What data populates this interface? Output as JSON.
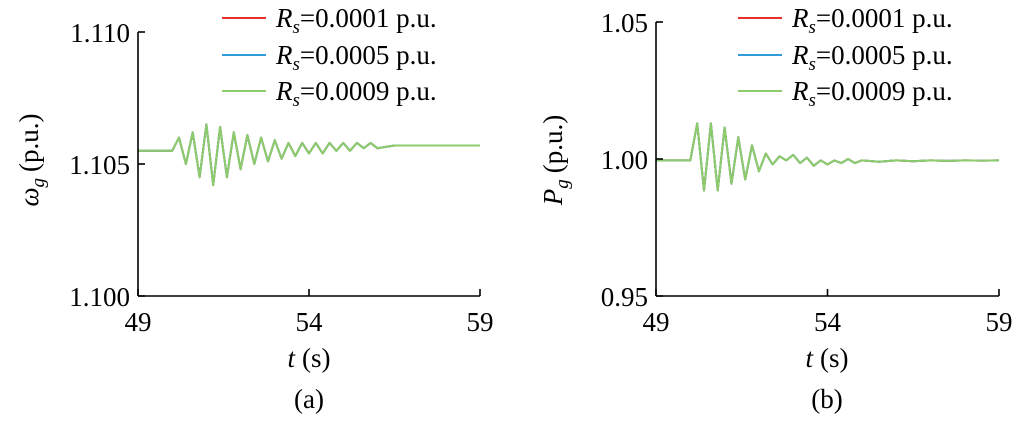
{
  "chart_data": [
    {
      "type": "line",
      "panel_label": "(a)",
      "title": "",
      "xlabel": {
        "main": "t",
        "unit": "(s)"
      },
      "ylabel": {
        "main": "ω",
        "sub": "g",
        "unit": "(p.u.)"
      },
      "xlim": [
        49,
        59
      ],
      "ylim": [
        1.1,
        1.11
      ],
      "xticks": [
        "49",
        "54",
        "59"
      ],
      "xtick_values": [
        49,
        54,
        59
      ],
      "yticks": [
        "1.100",
        "1.105",
        "1.110"
      ],
      "ytick_values": [
        1.1,
        1.105,
        1.11
      ],
      "legend": {
        "position": "top-right"
      },
      "series": [
        {
          "name": "R_s=0.0001 p.u.",
          "label_main": "R",
          "label_sub": "s",
          "label_rest": "=0.0001 p.u.",
          "color": "#e8302a"
        },
        {
          "name": "R_s=0.0005 p.u.",
          "label_main": "R",
          "label_sub": "s",
          "label_rest": "=0.0005 p.u.",
          "color": "#2f9bd8"
        },
        {
          "name": "R_s=0.0009 p.u.",
          "label_main": "R",
          "label_sub": "s",
          "label_rest": "=0.0009 p.u.",
          "color": "#8ccc6a"
        }
      ],
      "x": [
        49.0,
        49.5,
        50.0,
        50.2,
        50.4,
        50.6,
        50.8,
        51.0,
        51.2,
        51.4,
        51.6,
        51.8,
        52.0,
        52.2,
        52.4,
        52.6,
        52.8,
        53.0,
        53.2,
        53.4,
        53.6,
        53.8,
        54.0,
        54.2,
        54.4,
        54.6,
        54.8,
        55.0,
        55.2,
        55.4,
        55.6,
        55.8,
        56.0,
        56.5,
        57.0,
        57.5,
        58.0,
        58.5,
        59.0
      ],
      "y": [
        1.1055,
        1.1055,
        1.1055,
        1.106,
        1.105,
        1.1062,
        1.1045,
        1.1065,
        1.1042,
        1.1064,
        1.1045,
        1.1062,
        1.1048,
        1.1061,
        1.105,
        1.106,
        1.1051,
        1.1059,
        1.1052,
        1.1058,
        1.1053,
        1.1058,
        1.1054,
        1.1058,
        1.1054,
        1.1058,
        1.1055,
        1.1058,
        1.1055,
        1.1058,
        1.1056,
        1.1058,
        1.1056,
        1.1057,
        1.1057,
        1.1057,
        1.1057,
        1.1057,
        1.1057
      ]
    },
    {
      "type": "line",
      "panel_label": "(b)",
      "title": "",
      "xlabel": {
        "main": "t",
        "unit": "(s)"
      },
      "ylabel": {
        "main": "P",
        "sub": "g",
        "unit": "(p.u.)"
      },
      "xlim": [
        49,
        59
      ],
      "ylim": [
        0.95,
        1.05
      ],
      "xticks": [
        "49",
        "54",
        "59"
      ],
      "xtick_values": [
        49,
        54,
        59
      ],
      "yticks": [
        "0.95",
        "1.00",
        "1.05"
      ],
      "ytick_values": [
        0.95,
        1.0,
        1.05
      ],
      "legend": {
        "position": "top-right"
      },
      "series": [
        {
          "name": "R_s=0.0001 p.u.",
          "label_main": "R",
          "label_sub": "s",
          "label_rest": "=0.0001 p.u.",
          "color": "#e8302a"
        },
        {
          "name": "R_s=0.0005 p.u.",
          "label_main": "R",
          "label_sub": "s",
          "label_rest": "=0.0005 p.u.",
          "color": "#2f9bd8"
        },
        {
          "name": "R_s=0.0009 p.u.",
          "label_main": "R",
          "label_sub": "s",
          "label_rest": "=0.0009 p.u.",
          "color": "#8ccc6a"
        }
      ],
      "x": [
        49.0,
        49.5,
        50.0,
        50.2,
        50.4,
        50.6,
        50.8,
        51.0,
        51.2,
        51.4,
        51.6,
        51.8,
        52.0,
        52.2,
        52.4,
        52.6,
        52.8,
        53.0,
        53.2,
        53.4,
        53.6,
        53.8,
        54.0,
        54.2,
        54.4,
        54.6,
        54.8,
        55.0,
        55.5,
        56.0,
        56.5,
        57.0,
        57.5,
        58.0,
        58.5,
        59.0
      ],
      "y": [
        0.9995,
        0.9995,
        0.9995,
        1.013,
        0.9885,
        1.013,
        0.9885,
        1.0115,
        0.991,
        1.008,
        0.9925,
        1.005,
        0.9955,
        1.002,
        0.998,
        1.001,
        0.9995,
        1.0015,
        0.9985,
        1.0005,
        0.9975,
        0.9995,
        0.998,
        0.9995,
        0.9985,
        1.0,
        0.9985,
        0.9995,
        0.999,
        0.9995,
        0.9992,
        0.9995,
        0.9993,
        0.9995,
        0.9994,
        0.9995
      ]
    }
  ]
}
